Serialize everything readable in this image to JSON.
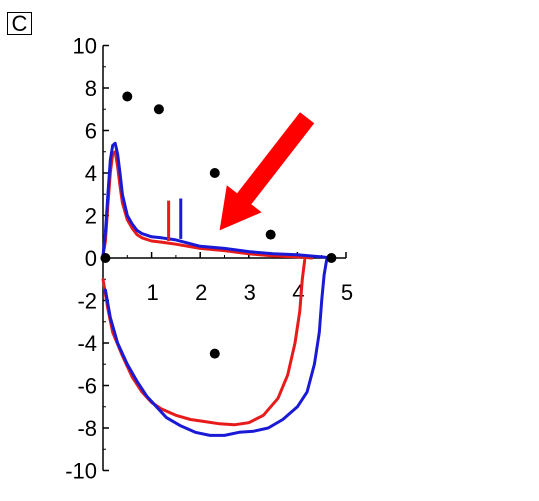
{
  "panel_label": "C",
  "colors": {
    "red_series": "#e81b1b",
    "blue_series": "#1a1ad6",
    "arrow": "#ff0000",
    "points": "#000000"
  },
  "chart_data": {
    "type": "line",
    "title": "",
    "xlabel": "",
    "ylabel": "",
    "xlim": [
      0,
      5
    ],
    "ylim": [
      -10,
      10
    ],
    "grid": false,
    "x_ticks": [
      1,
      2,
      3,
      4,
      5
    ],
    "y_ticks": [
      10,
      8,
      6,
      4,
      2,
      0,
      -2,
      -4,
      -6,
      -8,
      -10
    ],
    "series": [
      {
        "color": "#e81b1b",
        "upper": [
          [
            0.0,
            0.1
          ],
          [
            0.05,
            0.8
          ],
          [
            0.1,
            2.5
          ],
          [
            0.15,
            4.0
          ],
          [
            0.2,
            4.9
          ],
          [
            0.25,
            5.0
          ],
          [
            0.3,
            4.3
          ],
          [
            0.35,
            3.4
          ],
          [
            0.4,
            2.6
          ],
          [
            0.5,
            1.8
          ],
          [
            0.6,
            1.4
          ],
          [
            0.7,
            1.1
          ],
          [
            0.8,
            0.95
          ],
          [
            1.0,
            0.8
          ],
          [
            1.2,
            0.75
          ],
          [
            1.5,
            0.65
          ],
          [
            2.0,
            0.45
          ],
          [
            2.5,
            0.35
          ],
          [
            3.0,
            0.2
          ],
          [
            3.5,
            0.1
          ],
          [
            4.0,
            0.05
          ],
          [
            4.3,
            0.0
          ]
        ],
        "lower": [
          [
            0.0,
            -1.0
          ],
          [
            0.1,
            -2.4
          ],
          [
            0.2,
            -3.5
          ],
          [
            0.4,
            -4.6
          ],
          [
            0.6,
            -5.6
          ],
          [
            0.8,
            -6.3
          ],
          [
            1.0,
            -6.8
          ],
          [
            1.2,
            -7.1
          ],
          [
            1.5,
            -7.4
          ],
          [
            1.8,
            -7.6
          ],
          [
            2.1,
            -7.7
          ],
          [
            2.4,
            -7.8
          ],
          [
            2.7,
            -7.85
          ],
          [
            3.0,
            -7.75
          ],
          [
            3.3,
            -7.4
          ],
          [
            3.6,
            -6.6
          ],
          [
            3.8,
            -5.5
          ],
          [
            3.95,
            -4.0
          ],
          [
            4.05,
            -2.5
          ],
          [
            4.1,
            -1.0
          ],
          [
            4.15,
            -0.1
          ]
        ]
      },
      {
        "color": "#1a1ad6",
        "upper": [
          [
            0.0,
            0.1
          ],
          [
            0.05,
            1.2
          ],
          [
            0.1,
            3.0
          ],
          [
            0.15,
            4.6
          ],
          [
            0.2,
            5.3
          ],
          [
            0.25,
            5.4
          ],
          [
            0.3,
            4.9
          ],
          [
            0.35,
            4.0
          ],
          [
            0.4,
            3.0
          ],
          [
            0.5,
            2.0
          ],
          [
            0.6,
            1.6
          ],
          [
            0.7,
            1.3
          ],
          [
            0.8,
            1.15
          ],
          [
            1.0,
            1.0
          ],
          [
            1.2,
            0.95
          ],
          [
            1.5,
            0.85
          ],
          [
            2.0,
            0.55
          ],
          [
            2.5,
            0.45
          ],
          [
            3.0,
            0.3
          ],
          [
            3.5,
            0.2
          ],
          [
            4.0,
            0.15
          ],
          [
            4.5,
            0.05
          ],
          [
            4.7,
            0.0
          ]
        ],
        "lower": [
          [
            0.05,
            -1.5
          ],
          [
            0.15,
            -2.8
          ],
          [
            0.3,
            -4.0
          ],
          [
            0.5,
            -5.0
          ],
          [
            0.7,
            -5.8
          ],
          [
            0.9,
            -6.5
          ],
          [
            1.1,
            -7.0
          ],
          [
            1.3,
            -7.5
          ],
          [
            1.6,
            -7.9
          ],
          [
            1.9,
            -8.2
          ],
          [
            2.2,
            -8.35
          ],
          [
            2.5,
            -8.35
          ],
          [
            2.8,
            -8.2
          ],
          [
            3.1,
            -8.15
          ],
          [
            3.4,
            -8.0
          ],
          [
            3.7,
            -7.6
          ],
          [
            4.0,
            -7.0
          ],
          [
            4.2,
            -6.3
          ],
          [
            4.35,
            -5.0
          ],
          [
            4.45,
            -3.5
          ],
          [
            4.5,
            -2.0
          ],
          [
            4.55,
            -0.8
          ],
          [
            4.6,
            -0.1
          ]
        ]
      }
    ],
    "vertical_markers": [
      {
        "color": "#e81b1b",
        "x": 1.35,
        "y0": 0.8,
        "y1": 2.7
      },
      {
        "color": "#1a1ad6",
        "x": 1.6,
        "y0": 0.9,
        "y1": 2.8
      }
    ],
    "points": [
      [
        0.05,
        0
      ],
      [
        0.5,
        7.6
      ],
      [
        1.15,
        7.0
      ],
      [
        2.3,
        4.0
      ],
      [
        3.45,
        1.1
      ],
      [
        2.3,
        -4.5
      ],
      [
        4.7,
        0
      ]
    ],
    "annotations": [
      {
        "type": "arrow",
        "color": "#ff0000",
        "from": [
          4.2,
          6.6
        ],
        "to": [
          2.4,
          1.3
        ]
      }
    ]
  }
}
